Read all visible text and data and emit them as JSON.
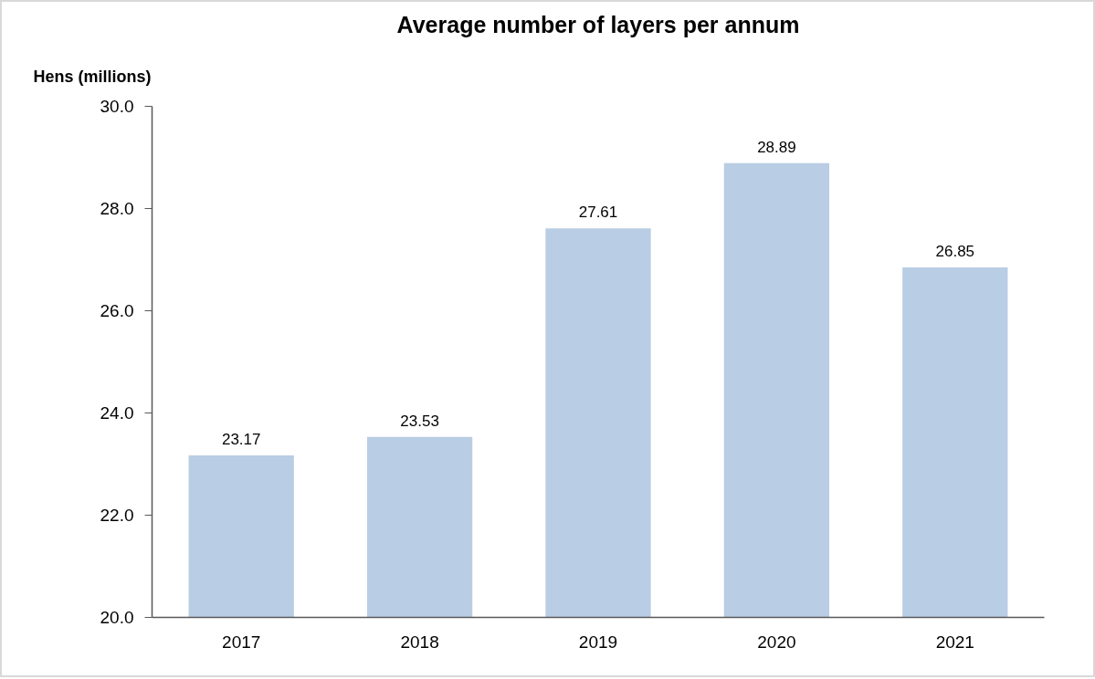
{
  "chart_data": {
    "type": "bar",
    "title": "Average number of layers per annum",
    "ylabel": "Hens (millions)",
    "categories": [
      "2017",
      "2018",
      "2019",
      "2020",
      "2021"
    ],
    "values": [
      23.17,
      23.53,
      27.61,
      28.89,
      26.85
    ],
    "color": "#b9cde4",
    "ylim": [
      20,
      30
    ],
    "yticks": [
      {
        "value": 20,
        "label": "20.0"
      },
      {
        "value": 22,
        "label": "22.0"
      },
      {
        "value": 24,
        "label": "24.0"
      },
      {
        "value": 26,
        "label": "26.0"
      },
      {
        "value": 28,
        "label": "28.0"
      },
      {
        "value": 30,
        "label": "30.0"
      }
    ],
    "data_labels": true,
    "grid": false
  }
}
